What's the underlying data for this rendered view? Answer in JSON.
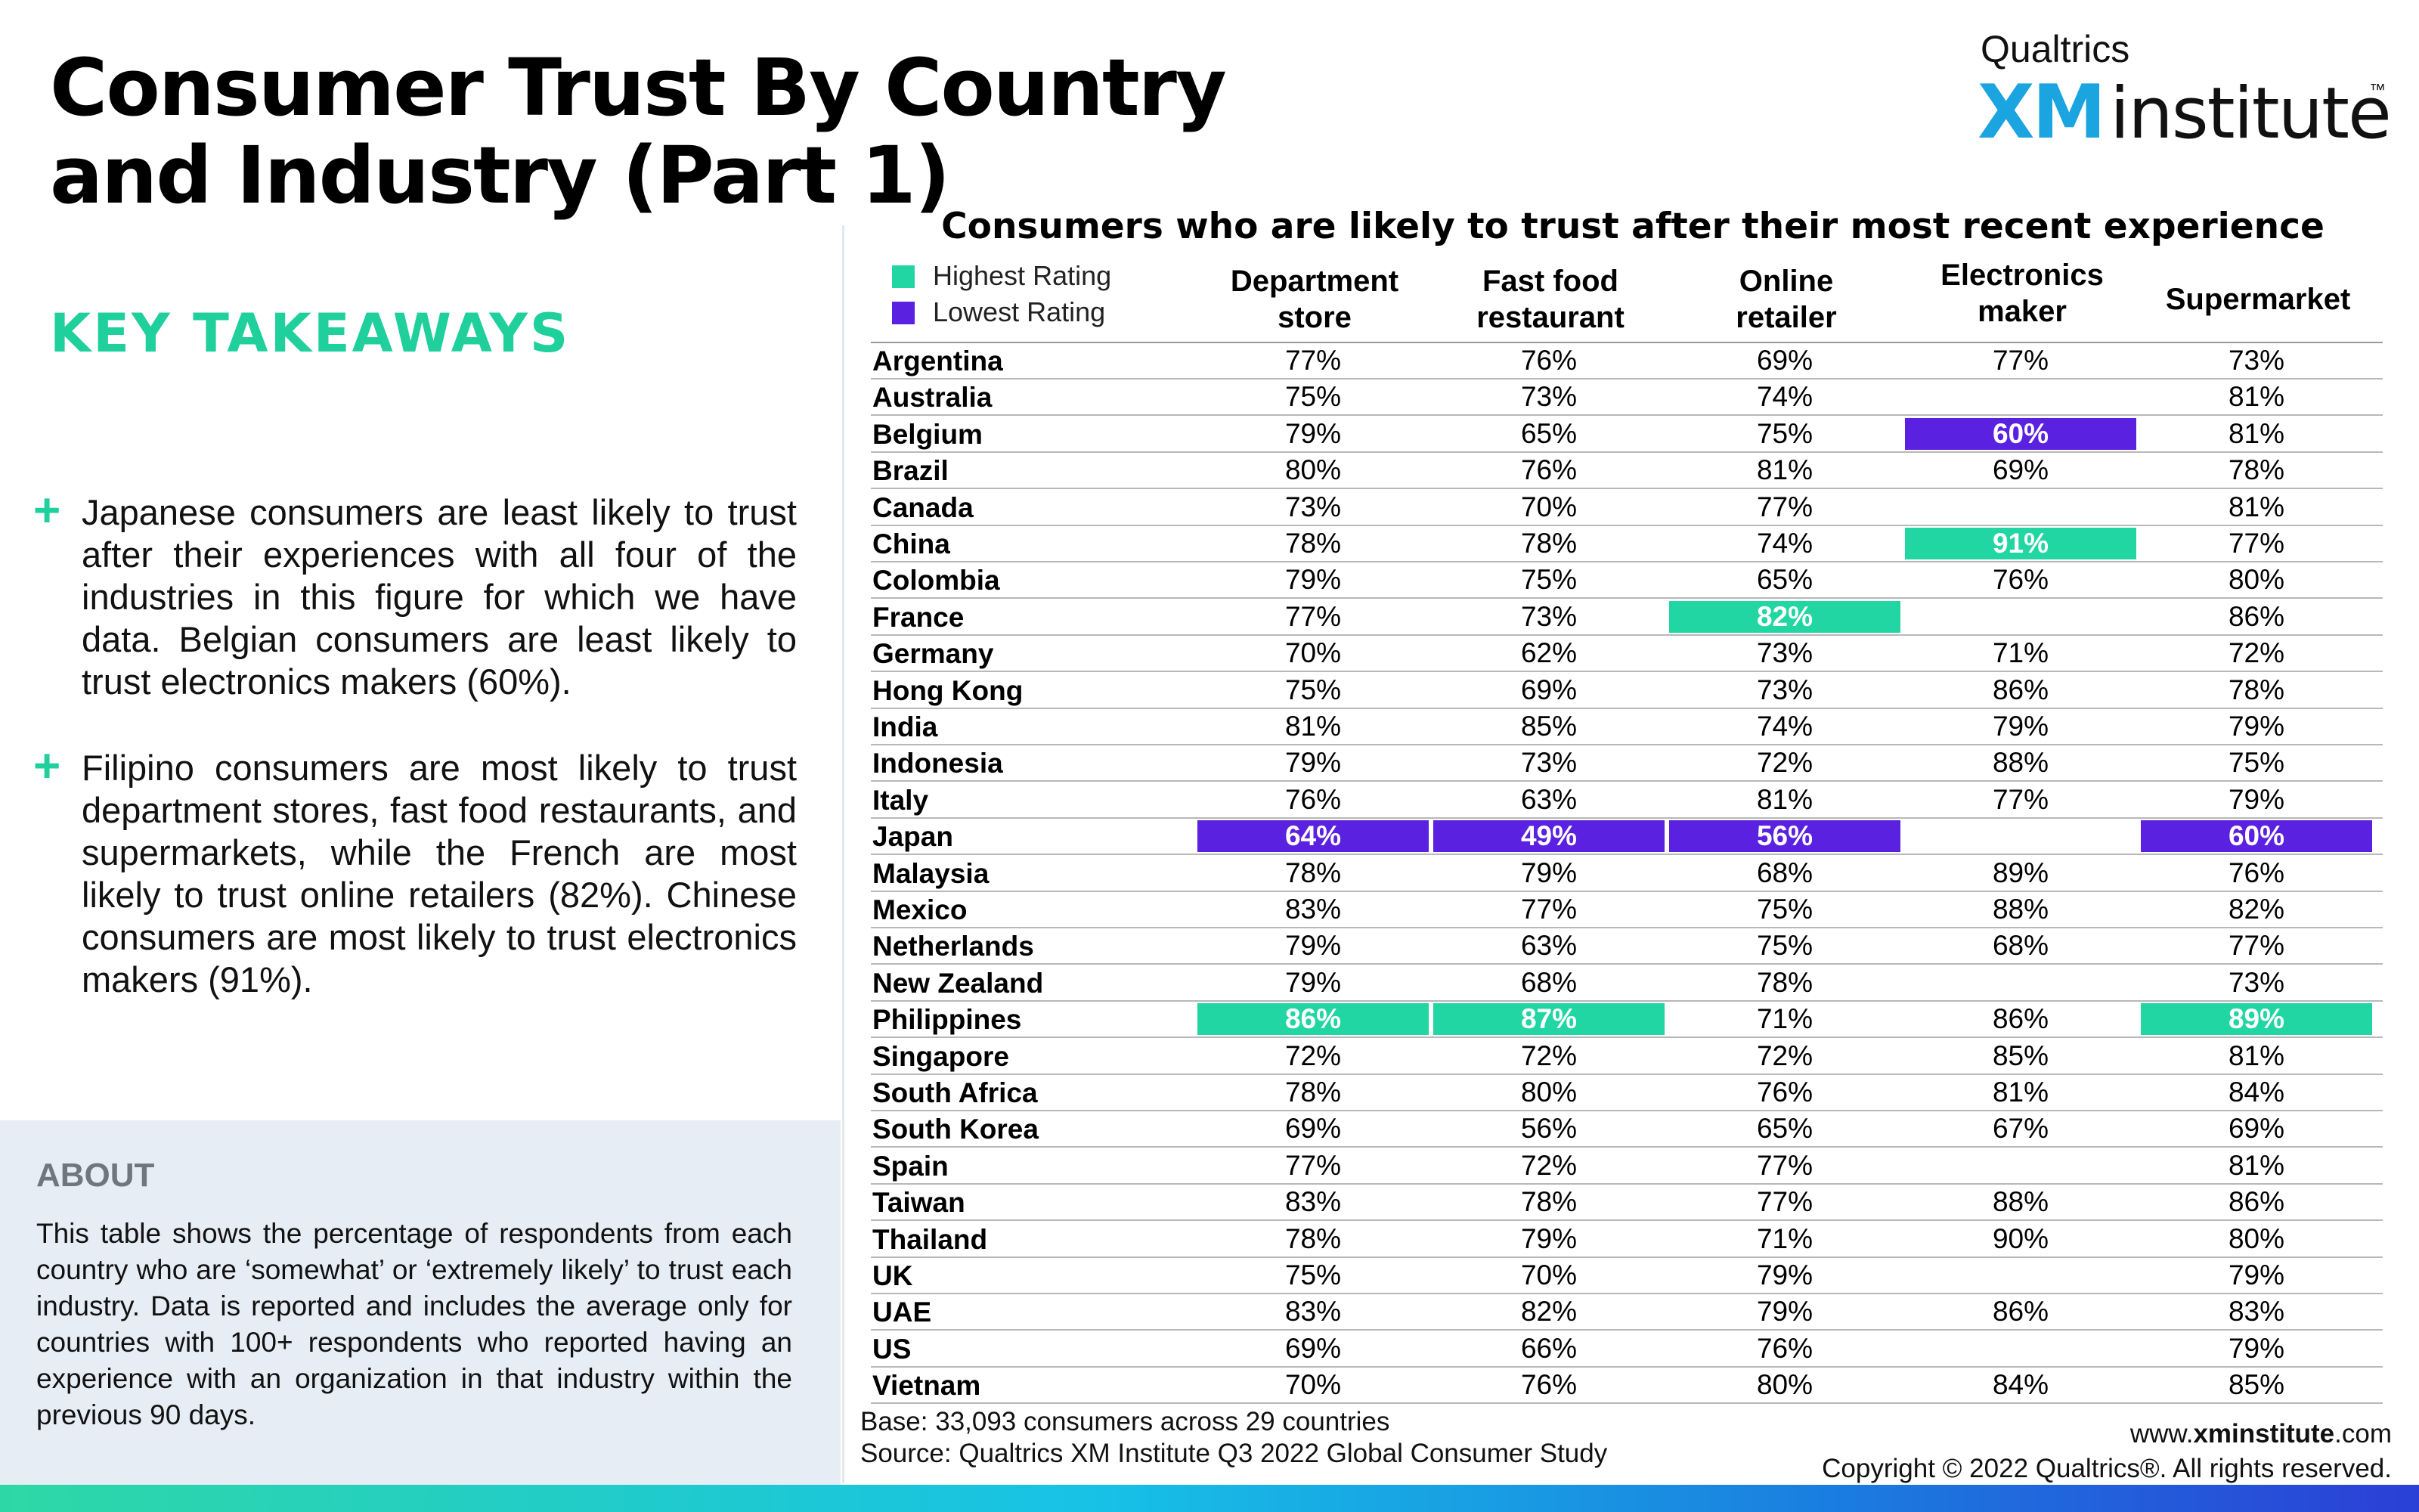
{
  "title": "Consumer Trust By Country and Industry (Part 1)",
  "logo": {
    "top": "Qualtrics",
    "xm": "XM",
    "institute": "institute",
    "tm": "™"
  },
  "takeaways": {
    "heading": "KEY TAKEAWAYS",
    "points": [
      "Japanese consumers are least likely to trust after their experiences with all four of the industries in this figure for which we have data. Belgian consumers are least likely to trust electronics makers (60%).",
      "Filipino consumers are most likely to trust department stores, fast food restaurants, and supermarkets, while the French are most likely to trust online retailers (82%). Chinese consumers are most likely to trust electronics makers (91%)."
    ]
  },
  "about": {
    "heading": "ABOUT",
    "text": "This table shows the percentage of respondents from each country who are ‘somewhat’ or ‘extremely likely’ to trust each industry. Data is reported and includes the average only for countries with 100+ respondents who reported having an experience with an organization in that industry within the previous 90 days."
  },
  "table": {
    "title": "Consumers who are likely to trust after their most recent experience",
    "legend": [
      {
        "label": "Highest Rating",
        "color": "#22d6a3"
      },
      {
        "label": "Lowest Rating",
        "color": "#5b21e0"
      }
    ],
    "columns": [
      {
        "line1": "Department",
        "line2": "store"
      },
      {
        "line1": "Fast food",
        "line2": "restaurant"
      },
      {
        "line1": "Online",
        "line2": "retailer"
      },
      {
        "line1": "Electronics",
        "line2": "maker"
      },
      {
        "line1": "Supermarket",
        "line2": ""
      }
    ],
    "rows": [
      {
        "country": "Argentina",
        "values": [
          "77%",
          "76%",
          "69%",
          "77%",
          "73%"
        ]
      },
      {
        "country": "Australia",
        "values": [
          "75%",
          "73%",
          "74%",
          "",
          "81%"
        ]
      },
      {
        "country": "Belgium",
        "values": [
          "79%",
          "65%",
          "75%",
          "60%",
          "81%"
        ],
        "highlight": {
          "3": "low"
        }
      },
      {
        "country": "Brazil",
        "values": [
          "80%",
          "76%",
          "81%",
          "69%",
          "78%"
        ]
      },
      {
        "country": "Canada",
        "values": [
          "73%",
          "70%",
          "77%",
          "",
          "81%"
        ]
      },
      {
        "country": "China",
        "values": [
          "78%",
          "78%",
          "74%",
          "91%",
          "77%"
        ],
        "highlight": {
          "3": "high"
        }
      },
      {
        "country": "Colombia",
        "values": [
          "79%",
          "75%",
          "65%",
          "76%",
          "80%"
        ]
      },
      {
        "country": "France",
        "values": [
          "77%",
          "73%",
          "82%",
          "",
          "86%"
        ],
        "highlight": {
          "2": "high"
        }
      },
      {
        "country": "Germany",
        "values": [
          "70%",
          "62%",
          "73%",
          "71%",
          "72%"
        ]
      },
      {
        "country": "Hong Kong",
        "values": [
          "75%",
          "69%",
          "73%",
          "86%",
          "78%"
        ]
      },
      {
        "country": "India",
        "values": [
          "81%",
          "85%",
          "74%",
          "79%",
          "79%"
        ]
      },
      {
        "country": "Indonesia",
        "values": [
          "79%",
          "73%",
          "72%",
          "88%",
          "75%"
        ]
      },
      {
        "country": "Italy",
        "values": [
          "76%",
          "63%",
          "81%",
          "77%",
          "79%"
        ]
      },
      {
        "country": "Japan",
        "values": [
          "64%",
          "49%",
          "56%",
          "",
          "60%"
        ],
        "highlight": {
          "0": "low",
          "1": "low",
          "2": "low",
          "4": "low"
        }
      },
      {
        "country": "Malaysia",
        "values": [
          "78%",
          "79%",
          "68%",
          "89%",
          "76%"
        ]
      },
      {
        "country": "Mexico",
        "values": [
          "83%",
          "77%",
          "75%",
          "88%",
          "82%"
        ]
      },
      {
        "country": "Netherlands",
        "values": [
          "79%",
          "63%",
          "75%",
          "68%",
          "77%"
        ]
      },
      {
        "country": "New Zealand",
        "values": [
          "79%",
          "68%",
          "78%",
          "",
          "73%"
        ]
      },
      {
        "country": "Philippines",
        "values": [
          "86%",
          "87%",
          "71%",
          "86%",
          "89%"
        ],
        "highlight": {
          "0": "high",
          "1": "high",
          "4": "high"
        }
      },
      {
        "country": "Singapore",
        "values": [
          "72%",
          "72%",
          "72%",
          "85%",
          "81%"
        ]
      },
      {
        "country": "South Africa",
        "values": [
          "78%",
          "80%",
          "76%",
          "81%",
          "84%"
        ]
      },
      {
        "country": "South Korea",
        "values": [
          "69%",
          "56%",
          "65%",
          "67%",
          "69%"
        ]
      },
      {
        "country": "Spain",
        "values": [
          "77%",
          "72%",
          "77%",
          "",
          "81%"
        ]
      },
      {
        "country": "Taiwan",
        "values": [
          "83%",
          "78%",
          "77%",
          "88%",
          "86%"
        ]
      },
      {
        "country": "Thailand",
        "values": [
          "78%",
          "79%",
          "71%",
          "90%",
          "80%"
        ]
      },
      {
        "country": "UK",
        "values": [
          "75%",
          "70%",
          "79%",
          "",
          "79%"
        ]
      },
      {
        "country": "UAE",
        "values": [
          "83%",
          "82%",
          "79%",
          "86%",
          "83%"
        ]
      },
      {
        "country": "US",
        "values": [
          "69%",
          "66%",
          "76%",
          "",
          "79%"
        ]
      },
      {
        "country": "Vietnam",
        "values": [
          "70%",
          "76%",
          "80%",
          "84%",
          "85%"
        ]
      }
    ]
  },
  "footer": {
    "base": "Base: 33,093 consumers across 29 countries",
    "source": "Source: Qualtrics XM Institute Q3 2022 Global Consumer Study",
    "url_prefix": "www.",
    "url_bold": "xminstitute",
    "url_suffix": ".com",
    "copyright": "Copyright © 2022 Qualtrics®. All rights reserved."
  },
  "colors": {
    "accent": "#1fcf9c",
    "high": "#22d6a3",
    "low": "#5b21e0",
    "logo_blue": "#1aa4e0"
  }
}
